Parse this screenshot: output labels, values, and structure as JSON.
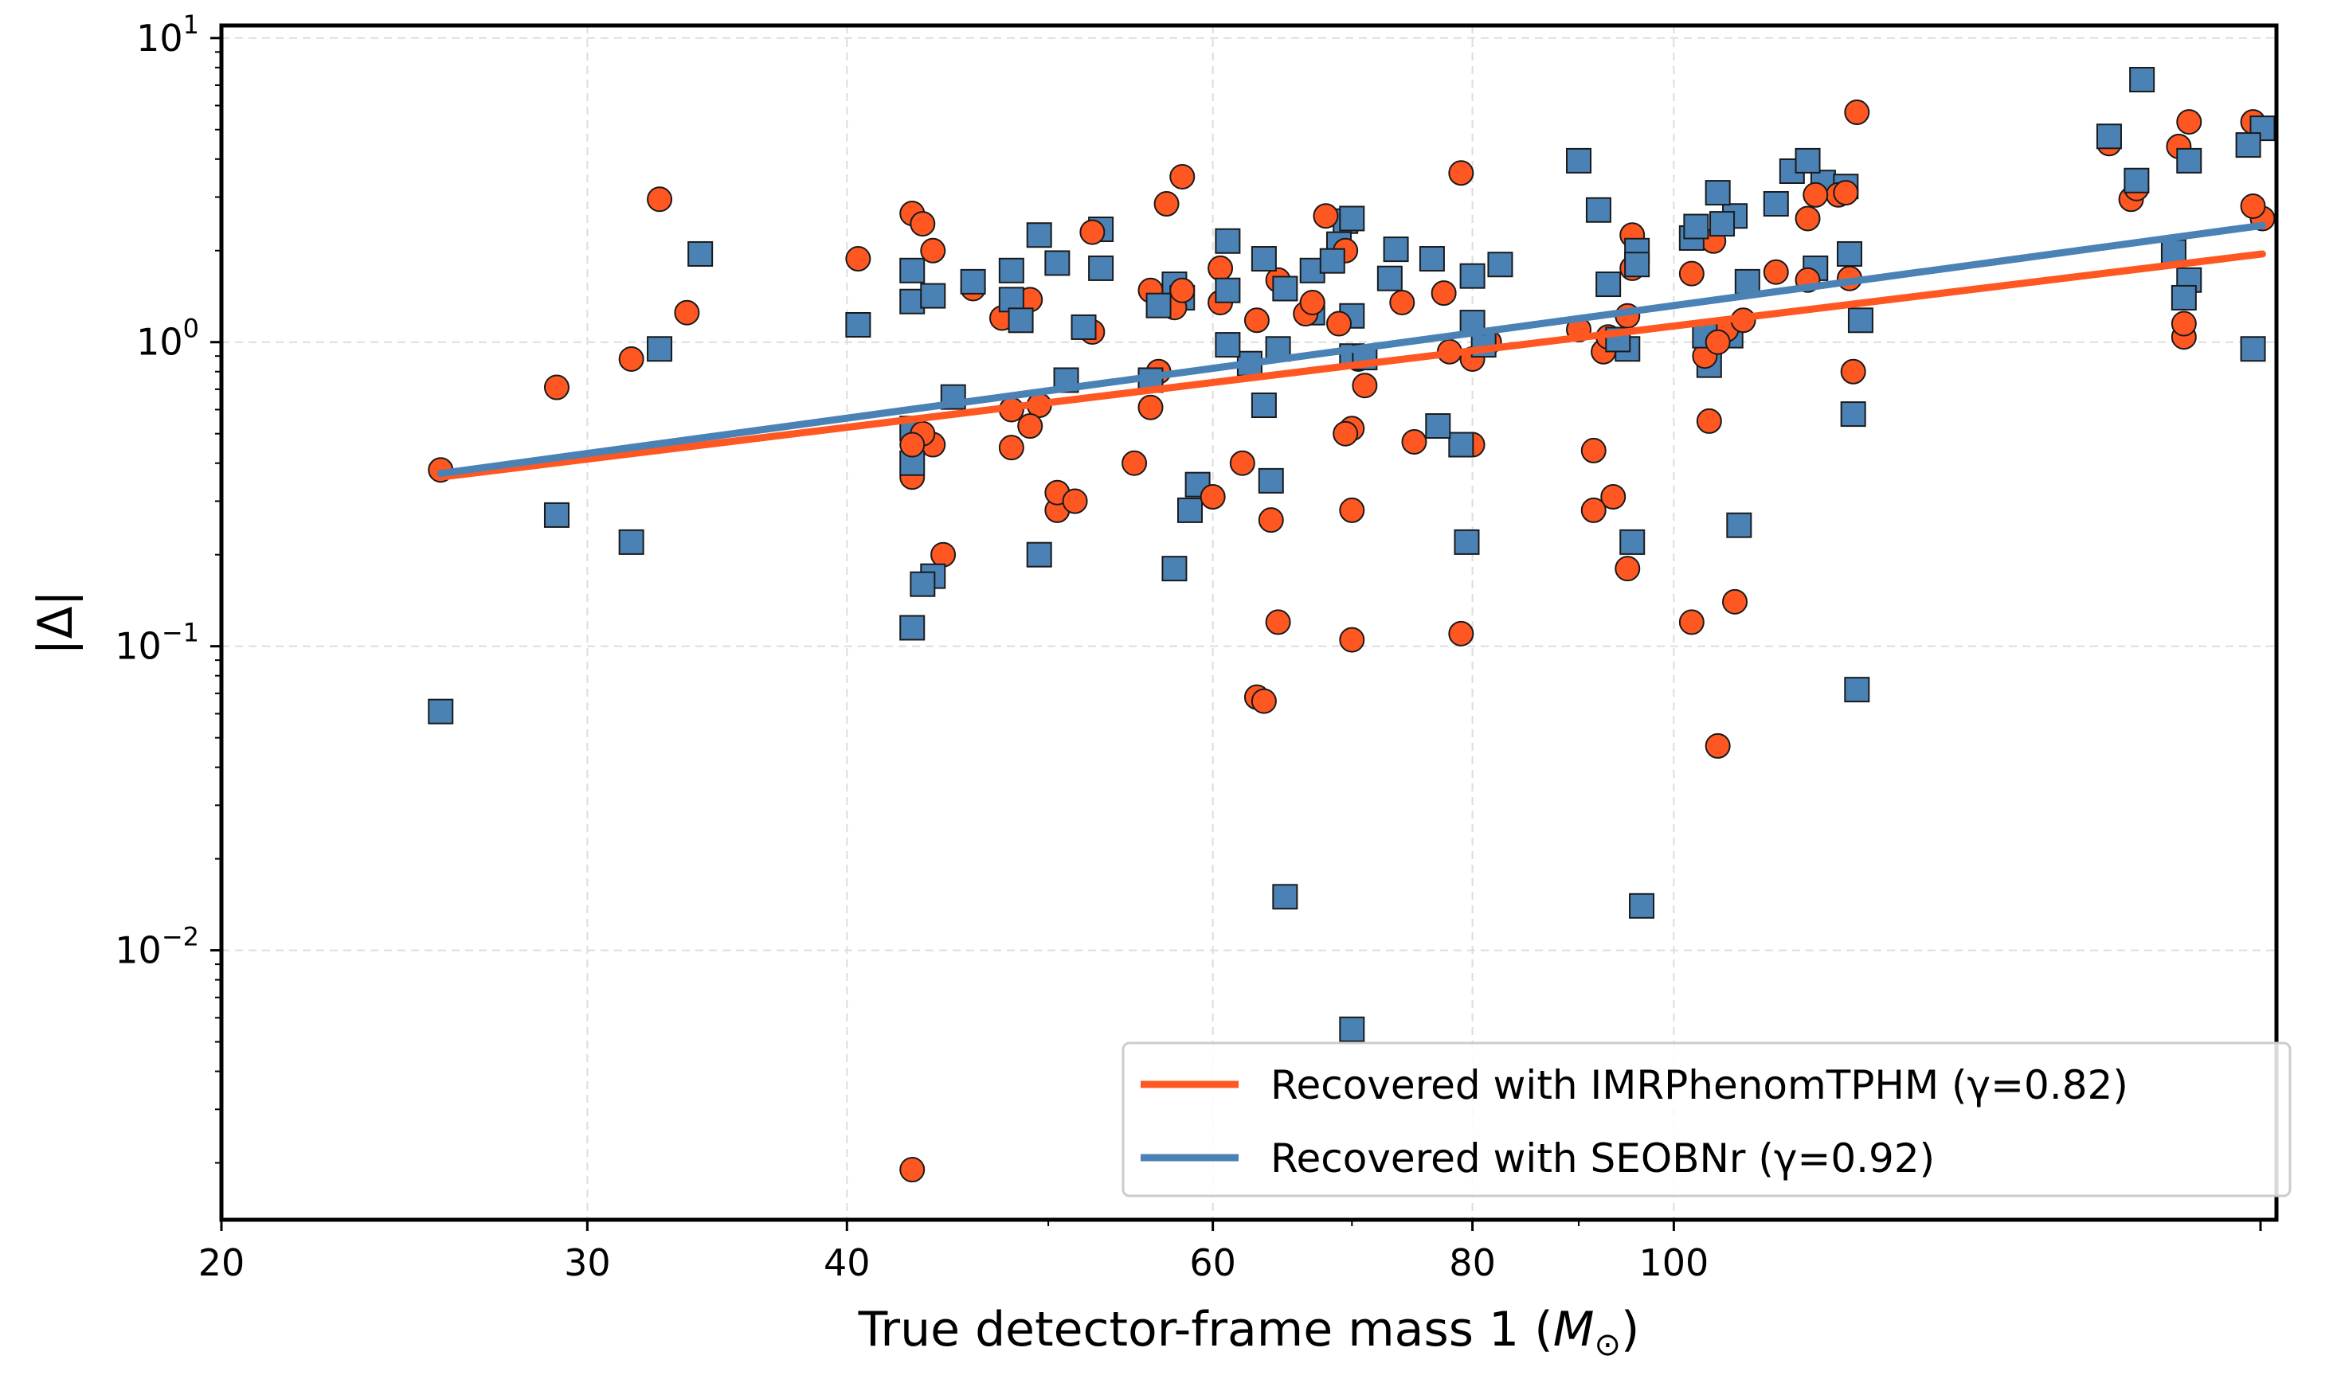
{
  "chart_data": {
    "type": "scatter",
    "title": "",
    "xlabel": "True detector-frame mass 1 (M⊙)",
    "ylabel": "|Δ|",
    "xscale": "log",
    "yscale": "log",
    "xlim": [
      20,
      195
    ],
    "ylim": [
      0.0013,
      11
    ],
    "grid": true,
    "legend_position": "lower-right",
    "x_ticks": [
      {
        "value": 20,
        "label": "20"
      },
      {
        "value": 30,
        "label": "30"
      },
      {
        "value": 40,
        "label": "40"
      },
      {
        "value": 60,
        "label": "60"
      },
      {
        "value": 80,
        "label": "80"
      },
      {
        "value": 100,
        "label": "100"
      }
    ],
    "y_ticks": [
      {
        "value": 10,
        "base": "10",
        "exp": "1"
      },
      {
        "value": 1,
        "base": "10",
        "exp": "0"
      },
      {
        "value": 0.1,
        "base": "10",
        "exp": "−1"
      },
      {
        "value": 0.01,
        "base": "10",
        "exp": "−2"
      }
    ],
    "series": [
      {
        "name": "Recovered with IMRPhenomTPHM (γ=0.82)",
        "marker": "circle",
        "color": "#ff5722",
        "fit": {
          "x": [
            25.5,
            192
          ],
          "y": [
            0.36,
            1.95
          ]
        },
        "points": [
          [
            25.5,
            0.38
          ],
          [
            29,
            0.71
          ],
          [
            31.5,
            0.88
          ],
          [
            32.5,
            2.95
          ],
          [
            33.5,
            1.25
          ],
          [
            40.5,
            1.88
          ],
          [
            43,
            2.65
          ],
          [
            43,
            0.46
          ],
          [
            43,
            0.36
          ],
          [
            43.5,
            2.45
          ],
          [
            43.5,
            0.5
          ],
          [
            44,
            2.0
          ],
          [
            44,
            0.46
          ],
          [
            44.5,
            0.2
          ],
          [
            43,
            0.0019
          ],
          [
            46,
            1.5
          ],
          [
            47.5,
            1.2
          ],
          [
            48,
            0.6
          ],
          [
            48,
            0.45
          ],
          [
            49,
            0.53
          ],
          [
            49,
            1.38
          ],
          [
            49.5,
            0.62
          ],
          [
            50.5,
            0.32
          ],
          [
            50.5,
            0.28
          ],
          [
            51.5,
            0.3
          ],
          [
            52.5,
            2.3
          ],
          [
            52.5,
            1.08
          ],
          [
            55,
            0.4
          ],
          [
            56,
            1.48
          ],
          [
            56,
            0.61
          ],
          [
            56.5,
            0.8
          ],
          [
            57,
            2.85
          ],
          [
            57.5,
            1.3
          ],
          [
            58,
            3.5
          ],
          [
            58,
            1.48
          ],
          [
            60,
            0.31
          ],
          [
            60.5,
            1.75
          ],
          [
            60.5,
            1.35
          ],
          [
            62,
            0.4
          ],
          [
            63,
            1.18
          ],
          [
            63,
            0.068
          ],
          [
            63.5,
            0.066
          ],
          [
            64,
            0.26
          ],
          [
            64.5,
            0.12
          ],
          [
            64.5,
            1.6
          ],
          [
            66.5,
            1.24
          ],
          [
            67,
            1.35
          ],
          [
            68,
            2.6
          ],
          [
            69,
            1.15
          ],
          [
            69.5,
            0.5
          ],
          [
            69.5,
            2.0
          ],
          [
            70,
            0.52
          ],
          [
            70,
            0.28
          ],
          [
            70,
            0.105
          ],
          [
            70.5,
            0.88
          ],
          [
            71,
            0.72
          ],
          [
            74,
            1.35
          ],
          [
            75,
            0.47
          ],
          [
            77.5,
            1.45
          ],
          [
            78,
            0.93
          ],
          [
            79,
            3.6
          ],
          [
            79,
            0.11
          ],
          [
            80,
            0.88
          ],
          [
            80,
            0.46
          ],
          [
            81.5,
            1.0
          ],
          [
            90,
            1.1
          ],
          [
            91.5,
            0.28
          ],
          [
            91.5,
            0.44
          ],
          [
            92.5,
            0.93
          ],
          [
            93,
            1.04
          ],
          [
            93.5,
            0.31
          ],
          [
            95,
            1.22
          ],
          [
            95,
            0.18
          ],
          [
            95.5,
            2.25
          ],
          [
            95.5,
            1.75
          ],
          [
            102,
            1.68
          ],
          [
            102,
            0.12
          ],
          [
            103.5,
            0.9
          ],
          [
            104,
            0.55
          ],
          [
            104.5,
            2.15
          ],
          [
            105,
            0.047
          ],
          [
            105,
            1.0
          ],
          [
            106,
            1.1
          ],
          [
            107,
            0.14
          ],
          [
            108,
            1.18
          ],
          [
            112,
            1.7
          ],
          [
            116,
            2.55
          ],
          [
            116,
            1.6
          ],
          [
            117,
            3.05
          ],
          [
            120,
            3.05
          ],
          [
            121,
            3.1
          ],
          [
            121.5,
            1.62
          ],
          [
            122,
            0.8
          ],
          [
            122.5,
            5.7
          ],
          [
            162,
            4.5
          ],
          [
            166,
            2.95
          ],
          [
            167,
            3.2
          ],
          [
            175,
            4.4
          ],
          [
            177,
            5.3
          ],
          [
            176,
            1.04
          ],
          [
            176,
            1.15
          ],
          [
            190,
            5.3
          ],
          [
            190,
            2.8
          ],
          [
            192,
            2.55
          ]
        ]
      },
      {
        "name": "Recovered with SEOBNr (γ=0.92)",
        "marker": "square",
        "color": "#4b82b5",
        "fit": {
          "x": [
            25.5,
            192
          ],
          "y": [
            0.37,
            2.42
          ]
        },
        "points": [
          [
            25.5,
            0.061
          ],
          [
            29,
            0.27
          ],
          [
            31.5,
            0.22
          ],
          [
            32.5,
            0.95
          ],
          [
            34,
            1.95
          ],
          [
            40.5,
            1.14
          ],
          [
            43,
            1.72
          ],
          [
            43,
            1.36
          ],
          [
            43,
            0.52
          ],
          [
            43,
            0.4
          ],
          [
            43,
            0.115
          ],
          [
            43.5,
            0.16
          ],
          [
            44,
            1.42
          ],
          [
            44,
            0.17
          ],
          [
            45,
            0.66
          ],
          [
            46,
            1.58
          ],
          [
            48,
            1.38
          ],
          [
            48,
            1.72
          ],
          [
            48.5,
            1.18
          ],
          [
            49.5,
            2.25
          ],
          [
            49.5,
            0.2
          ],
          [
            50.5,
            1.82
          ],
          [
            51,
            0.75
          ],
          [
            52,
            1.12
          ],
          [
            53,
            1.75
          ],
          [
            53,
            2.35
          ],
          [
            56,
            0.75
          ],
          [
            56.5,
            1.32
          ],
          [
            57.5,
            1.55
          ],
          [
            57.5,
            0.18
          ],
          [
            58,
            1.4
          ],
          [
            58.5,
            0.28
          ],
          [
            59,
            0.34
          ],
          [
            61,
            2.15
          ],
          [
            61,
            0.98
          ],
          [
            61,
            1.48
          ],
          [
            62.5,
            0.85
          ],
          [
            63.5,
            1.88
          ],
          [
            63.5,
            0.62
          ],
          [
            64,
            0.35
          ],
          [
            64.5,
            0.95
          ],
          [
            65,
            1.5
          ],
          [
            65,
            0.015
          ],
          [
            67,
            1.72
          ],
          [
            67,
            1.25
          ],
          [
            68.5,
            1.85
          ],
          [
            69,
            2.1
          ],
          [
            69.5,
            2.5
          ],
          [
            70,
            2.55
          ],
          [
            70,
            1.22
          ],
          [
            70,
            0.9
          ],
          [
            71,
            0.89
          ],
          [
            70,
            0.0055
          ],
          [
            73,
            1.62
          ],
          [
            73.5,
            2.02
          ],
          [
            76.5,
            1.88
          ],
          [
            77,
            0.53
          ],
          [
            79,
            0.46
          ],
          [
            79.5,
            0.22
          ],
          [
            80,
            1.65
          ],
          [
            80,
            1.16
          ],
          [
            81,
            0.98
          ],
          [
            82.5,
            1.8
          ],
          [
            90,
            3.95
          ],
          [
            92,
            2.72
          ],
          [
            93,
            1.55
          ],
          [
            94,
            1.02
          ],
          [
            95,
            0.95
          ],
          [
            95.5,
            0.22
          ],
          [
            96,
            1.8
          ],
          [
            96,
            2.0
          ],
          [
            96.5,
            0.014
          ],
          [
            102.5,
            2.4
          ],
          [
            102,
            2.2
          ],
          [
            103.5,
            1.05
          ],
          [
            104,
            0.84
          ],
          [
            105,
            3.1
          ],
          [
            105.5,
            2.45
          ],
          [
            106.5,
            1.05
          ],
          [
            107,
            2.6
          ],
          [
            107.5,
            0.25
          ],
          [
            108.5,
            1.58
          ],
          [
            112,
            2.85
          ],
          [
            114,
            3.65
          ],
          [
            116,
            3.95
          ],
          [
            117,
            1.75
          ],
          [
            118,
            3.35
          ],
          [
            121,
            3.25
          ],
          [
            121.5,
            1.95
          ],
          [
            122,
            0.58
          ],
          [
            123,
            1.18
          ],
          [
            122.5,
            0.072
          ],
          [
            162,
            4.75
          ],
          [
            167,
            3.4
          ],
          [
            168,
            7.3
          ],
          [
            174,
            1.98
          ],
          [
            176,
            1.4
          ],
          [
            177,
            1.6
          ],
          [
            177,
            3.95
          ],
          [
            189,
            4.45
          ],
          [
            190,
            0.95
          ],
          [
            192,
            5.05
          ]
        ]
      }
    ]
  }
}
